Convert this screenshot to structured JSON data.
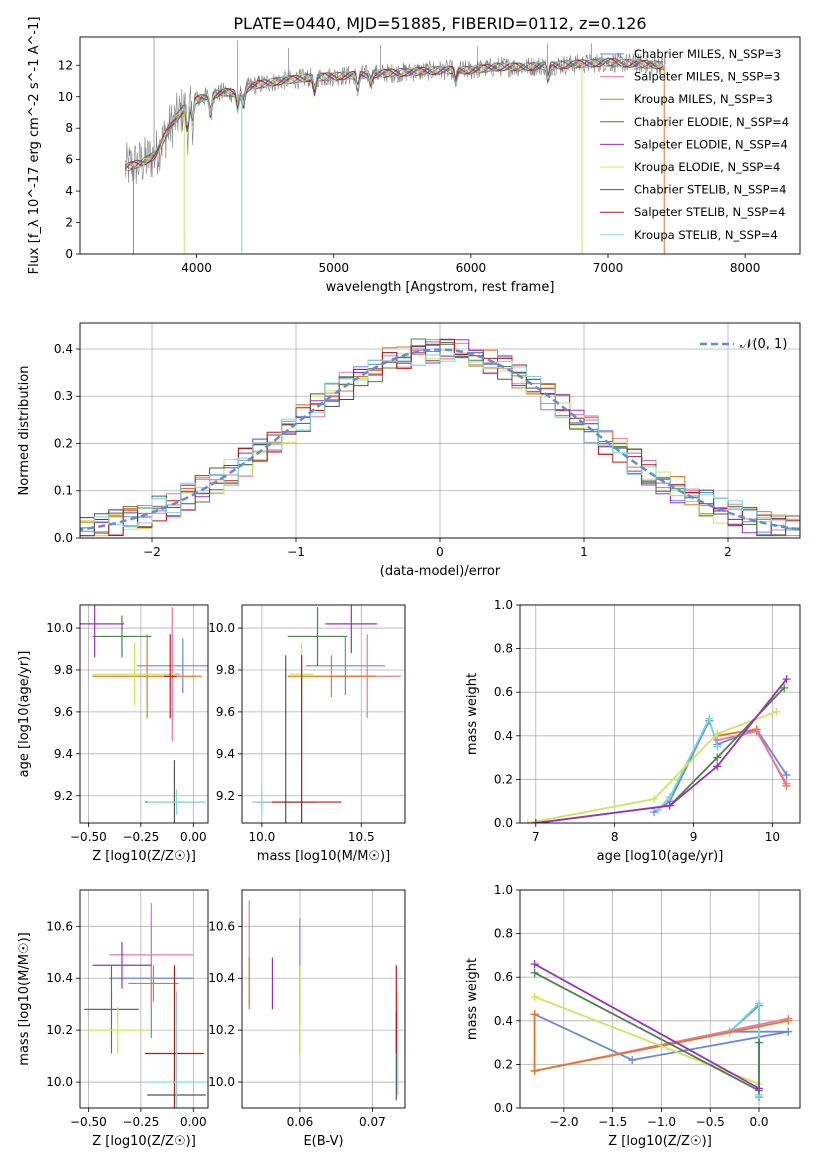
{
  "figure_title": "PLATE=0440, MJD=51885, FIBERID=0112, z=0.126",
  "colors": {
    "chabrier_miles": "#6a8ad8",
    "salpeter_miles": "#e879a8",
    "kroupa_miles": "#e07a28",
    "chabrier_elodie": "#4f7f4f",
    "salpeter_elodie": "#9932b8",
    "kroupa_elodie": "#cfe45a",
    "chabrier_stelib": "#555555",
    "salpeter_stelib": "#b21a1a",
    "kroupa_stelib": "#7fd6d8",
    "data_spectrum": "#808080",
    "normal_curve": "#5b8fd6",
    "grid": "#b0b0b0"
  },
  "chart_data": [
    {
      "id": "spectrum",
      "type": "line",
      "title": "PLATE=0440, MJD=51885, FIBERID=0112, z=0.126",
      "xlabel": "wavelength [Angstrom, rest frame]",
      "ylabel": "Flux [f_λ 10^-17 erg cm^-2 s^-1 A^-1]",
      "xlim": [
        3150,
        8400
      ],
      "ylim": [
        0,
        13.8
      ],
      "xticks": [
        4000,
        5000,
        6000,
        7000,
        8000
      ],
      "yticks": [
        0,
        2,
        4,
        6,
        8,
        10,
        12
      ],
      "grid": false,
      "legend_position": "right",
      "series": [
        {
          "name": "Chabrier MILES, N_SSP=3",
          "color": "#6a8ad8"
        },
        {
          "name": "Salpeter MILES, N_SSP=3",
          "color": "#e879a8"
        },
        {
          "name": "Kroupa MILES, N_SSP=3",
          "color": "#e07a28"
        },
        {
          "name": "Chabrier ELODIE, N_SSP=4",
          "color": "#4f7f4f"
        },
        {
          "name": "Salpeter ELODIE, N_SSP=4",
          "color": "#9932b8"
        },
        {
          "name": "Kroupa ELODIE, N_SSP=4",
          "color": "#cfe45a"
        },
        {
          "name": "Chabrier STELIB, N_SSP=4",
          "color": "#555555"
        },
        {
          "name": "Salpeter STELIB, N_SSP=4",
          "color": "#b21a1a"
        },
        {
          "name": "Kroupa STELIB, N_SSP=4",
          "color": "#7fd6d8"
        }
      ],
      "continuum": {
        "x": [
          3480,
          3600,
          3700,
          3800,
          3900,
          4000,
          4100,
          4200,
          4300,
          4400,
          4600,
          4800,
          5000,
          5200,
          5400,
          5600,
          5800,
          6000,
          6200,
          6400,
          6600,
          6800,
          7000,
          7200,
          7400
        ],
        "y": [
          5.5,
          5.8,
          6.3,
          8.0,
          9.2,
          9.8,
          10.1,
          10.3,
          10.2,
          10.7,
          11.0,
          11.2,
          11.3,
          11.4,
          11.5,
          11.6,
          11.7,
          11.7,
          11.9,
          11.9,
          12.0,
          12.1,
          12.2,
          12.1,
          12.0
        ]
      }
    },
    {
      "id": "residuals",
      "type": "histogram",
      "xlabel": "(data-model)/error",
      "ylabel": "Normed distribution",
      "xlim": [
        -2.5,
        2.5
      ],
      "ylim": [
        0,
        0.455
      ],
      "xticks": [
        -2,
        -1,
        0,
        1,
        2
      ],
      "yticks": [
        0.0,
        0.1,
        0.2,
        0.3,
        0.4
      ],
      "grid": true,
      "legend": "𝒩(0, 1)",
      "legend_position": "top-right",
      "bin_width": 0.1,
      "reference_curve": "normal(0,1)"
    },
    {
      "id": "age_vs_Z",
      "type": "errorbar",
      "xlabel": "Z [log10(Z/Z☉)]",
      "ylabel": "age  [log10(age/yr)]",
      "xlim": [
        -0.54,
        0.07
      ],
      "ylim": [
        9.07,
        10.11
      ],
      "xticks": [
        -0.5,
        -0.25,
        0.0
      ],
      "xticklabels": [
        "−0.50",
        "−0.25",
        "0.00"
      ],
      "yticks": [
        9.2,
        9.4,
        9.6,
        9.8,
        10.0
      ],
      "grid": true,
      "points": [
        {
          "x": -0.05,
          "xerr": 0.22,
          "y": 9.82,
          "yerr": 0.13,
          "color": "#6a8ad8"
        },
        {
          "x": -0.1,
          "xerr": 0.04,
          "y": 9.78,
          "yerr": 0.32,
          "color": "#e879a8"
        },
        {
          "x": -0.22,
          "xerr": 0.26,
          "y": 9.77,
          "yerr": 0.2,
          "color": "#e07a28"
        },
        {
          "x": -0.34,
          "xerr": 0.14,
          "y": 9.96,
          "yerr": 0.1,
          "color": "#4f7f4f"
        },
        {
          "x": -0.47,
          "xerr": 0.14,
          "y": 10.02,
          "yerr": 0.16,
          "color": "#9932b8"
        },
        {
          "x": -0.28,
          "xerr": 0.2,
          "y": 9.78,
          "yerr": 0.15,
          "color": "#cfe45a"
        },
        {
          "x": -0.09,
          "xerr": 0.14,
          "y": 9.17,
          "yerr": 0.2,
          "color": "#555555"
        },
        {
          "x": -0.11,
          "xerr": 0.03,
          "y": 9.77,
          "yerr": 0.2,
          "color": "#b21a1a"
        },
        {
          "x": -0.08,
          "xerr": 0.14,
          "y": 9.17,
          "yerr": 0.06,
          "color": "#7fd6d8"
        }
      ]
    },
    {
      "id": "age_vs_mass",
      "type": "errorbar",
      "xlabel": "mass [log10(M/M☉)]",
      "ylabel": "",
      "xlim": [
        9.9,
        10.72
      ],
      "ylim": [
        9.07,
        10.11
      ],
      "xticks": [
        10.0,
        10.5
      ],
      "xticklabels": [
        "10.0",
        "10.5"
      ],
      "yticks": [
        9.2,
        9.4,
        9.6,
        9.8,
        10.0
      ],
      "grid": true,
      "points": [
        {
          "x": 10.42,
          "xerr": 0.2,
          "y": 9.82,
          "yerr": 0.14,
          "color": "#6a8ad8"
        },
        {
          "x": 10.53,
          "xerr": 0.17,
          "y": 9.77,
          "yerr": 0.2,
          "color": "#e879a8"
        },
        {
          "x": 10.35,
          "xerr": 0.22,
          "y": 9.77,
          "yerr": 0.1,
          "color": "#e07a28"
        },
        {
          "x": 10.28,
          "xerr": 0.15,
          "y": 9.96,
          "yerr": 0.14,
          "color": "#4f7f4f"
        },
        {
          "x": 10.45,
          "xerr": 0.13,
          "y": 10.02,
          "yerr": 0.14,
          "color": "#9932b8"
        },
        {
          "x": 10.2,
          "xerr": 0.06,
          "y": 9.78,
          "yerr": 0.15,
          "color": "#cfe45a"
        },
        {
          "x": 10.12,
          "xerr": 0.15,
          "y": 9.17,
          "yerr": 0.7,
          "color": "#555555"
        },
        {
          "x": 10.2,
          "xerr": 0.2,
          "y": 9.17,
          "yerr": 0.7,
          "color": "#b21a1a"
        },
        {
          "x": 10.0,
          "xerr": 0.05,
          "y": 9.17,
          "yerr": 0.06,
          "color": "#7fd6d8"
        }
      ]
    },
    {
      "id": "mass_weight_vs_age",
      "type": "line",
      "xlabel": "age  [log10(age/yr)]",
      "ylabel": "mass weight",
      "xlim": [
        6.8,
        10.35
      ],
      "ylim": [
        0.0,
        1.0
      ],
      "xticks": [
        7,
        8,
        9,
        10
      ],
      "yticks": [
        0.0,
        0.2,
        0.4,
        0.6,
        0.8,
        1.0
      ],
      "grid": true,
      "series": [
        {
          "color": "#6a8ad8",
          "x": [
            8.5,
            8.7,
            9.2,
            9.3,
            9.8,
            10.18
          ],
          "y": [
            0.05,
            0.1,
            0.47,
            0.36,
            0.43,
            0.22
          ]
        },
        {
          "color": "#7fd6d8",
          "x": [
            8.55,
            8.7,
            9.2,
            9.3
          ],
          "y": [
            0.06,
            0.12,
            0.48,
            0.35
          ]
        },
        {
          "color": "#e07a28",
          "x": [
            9.3,
            9.8,
            10.18
          ],
          "y": [
            0.4,
            0.43,
            0.17
          ]
        },
        {
          "color": "#e879a8",
          "x": [
            9.3,
            9.8,
            10.18
          ],
          "y": [
            0.38,
            0.42,
            0.18
          ]
        },
        {
          "color": "#cfe45a",
          "x": [
            6.9,
            8.5,
            9.3,
            10.05
          ],
          "y": [
            0.0,
            0.11,
            0.41,
            0.51
          ]
        },
        {
          "color": "#4f7f4f",
          "x": [
            7.0,
            8.7,
            9.3,
            10.15
          ],
          "y": [
            0.0,
            0.08,
            0.3,
            0.62
          ]
        },
        {
          "color": "#9932b8",
          "x": [
            7.0,
            8.7,
            9.3,
            10.18
          ],
          "y": [
            0.0,
            0.08,
            0.26,
            0.66
          ]
        }
      ]
    },
    {
      "id": "mass_vs_Z",
      "type": "errorbar",
      "xlabel": "Z [log10(Z/Z☉)]",
      "ylabel": "mass [log10(M/M☉)]",
      "xlim": [
        -0.54,
        0.07
      ],
      "ylim": [
        9.9,
        10.74
      ],
      "xticks": [
        -0.5,
        -0.25,
        0.0
      ],
      "xticklabels": [
        "−0.50",
        "−0.25",
        "0.00"
      ],
      "yticks": [
        10.0,
        10.2,
        10.4,
        10.6
      ],
      "grid": true,
      "points": [
        {
          "x": -0.2,
          "xerr": 0.2,
          "y": 10.4,
          "yerr": 0.23,
          "color": "#6a8ad8"
        },
        {
          "x": -0.2,
          "xerr": 0.2,
          "y": 10.49,
          "yerr": 0.2,
          "color": "#e879a8"
        },
        {
          "x": -0.19,
          "xerr": 0.12,
          "y": 10.38,
          "yerr": 0.07,
          "color": "#e07a28"
        },
        {
          "x": -0.39,
          "xerr": 0.13,
          "y": 10.28,
          "yerr": 0.17,
          "color": "#4f7f4f"
        },
        {
          "x": -0.34,
          "xerr": 0.14,
          "y": 10.45,
          "yerr": 0.09,
          "color": "#9932b8"
        },
        {
          "x": -0.36,
          "xerr": 0.14,
          "y": 10.2,
          "yerr": 0.09,
          "color": "#cfe45a"
        },
        {
          "x": -0.08,
          "xerr": 0.14,
          "y": 9.95,
          "yerr": 0.04,
          "color": "#555555"
        },
        {
          "x": -0.09,
          "xerr": 0.14,
          "y": 10.11,
          "yerr": 0.34,
          "color": "#b21a1a"
        },
        {
          "x": -0.08,
          "xerr": 0.14,
          "y": 10.0,
          "yerr": 0.35,
          "color": "#7fd6d8"
        }
      ]
    },
    {
      "id": "mass_vs_ebv",
      "type": "errorbar",
      "xlabel": "E(B-V)",
      "ylabel": "",
      "xlim": [
        0.052,
        0.0745
      ],
      "ylim": [
        9.9,
        10.74
      ],
      "xticks": [
        0.06,
        0.07
      ],
      "xticklabels": [
        "0.06",
        "0.07"
      ],
      "yticks": [
        10.0,
        10.2,
        10.4,
        10.6
      ],
      "grid": true,
      "points": [
        {
          "x": 0.06,
          "xerr": 0.0,
          "y": 10.43,
          "yerr": 0.2,
          "color": "#6a8ad8"
        },
        {
          "x": 0.053,
          "xerr": 0.0,
          "y": 10.5,
          "yerr": 0.2,
          "color": "#e879a8"
        },
        {
          "x": 0.053,
          "xerr": 0.0,
          "y": 10.38,
          "yerr": 0.1,
          "color": "#e07a28"
        },
        {
          "x": 0.06,
          "xerr": 0.0,
          "y": 10.28,
          "yerr": 0.17,
          "color": "#4f7f4f"
        },
        {
          "x": 0.0562,
          "xerr": 0.0,
          "y": 10.38,
          "yerr": 0.1,
          "color": "#9932b8"
        },
        {
          "x": 0.06,
          "xerr": 0.0,
          "y": 10.28,
          "yerr": 0.17,
          "color": "#cfe45a"
        },
        {
          "x": 0.0733,
          "xerr": 0.0,
          "y": 10.1,
          "yerr": 0.17,
          "color": "#555555"
        },
        {
          "x": 0.0733,
          "xerr": 0.0,
          "y": 10.28,
          "yerr": 0.17,
          "color": "#b21a1a"
        },
        {
          "x": 0.0735,
          "xerr": 0.0,
          "y": 10.15,
          "yerr": 0.2,
          "color": "#7fd6d8"
        }
      ]
    },
    {
      "id": "mass_weight_vs_Z",
      "type": "line",
      "xlabel": "Z [log10(Z/Z☉)]",
      "ylabel": "mass weight",
      "xlim": [
        -2.45,
        0.42
      ],
      "ylim": [
        0.0,
        1.0
      ],
      "xticks": [
        -2.0,
        -1.5,
        -1.0,
        -0.5,
        0.0
      ],
      "xticklabels": [
        "−2.0",
        "−1.5",
        "−1.0",
        "−0.5",
        "0.0"
      ],
      "yticks": [
        0.0,
        0.2,
        0.4,
        0.6,
        0.8,
        1.0
      ],
      "grid": true,
      "series": [
        {
          "color": "#6a8ad8",
          "x": [
            -2.3,
            -1.3,
            0.3,
            -0.3,
            0.0,
            0.0
          ],
          "y": [
            0.43,
            0.22,
            0.35,
            0.35,
            0.47,
            0.05
          ]
        },
        {
          "color": "#7fd6d8",
          "x": [
            -0.3,
            0.0,
            0.0
          ],
          "y": [
            0.35,
            0.48,
            0.06
          ]
        },
        {
          "color": "#e879a8",
          "x": [
            -2.3,
            -2.3,
            0.3
          ],
          "y": [
            0.43,
            0.17,
            0.41
          ]
        },
        {
          "color": "#e07a28",
          "x": [
            -2.3,
            -2.3,
            0.3
          ],
          "y": [
            0.43,
            0.17,
            0.4
          ]
        },
        {
          "color": "#cfe45a",
          "x": [
            -2.3,
            0.0
          ],
          "y": [
            0.51,
            0.11
          ]
        },
        {
          "color": "#4f7f4f",
          "x": [
            -2.3,
            0.0,
            0.0
          ],
          "y": [
            0.62,
            0.08,
            0.3
          ]
        },
        {
          "color": "#9932b8",
          "x": [
            -2.3,
            0.0
          ],
          "y": [
            0.66,
            0.09
          ]
        }
      ]
    }
  ]
}
